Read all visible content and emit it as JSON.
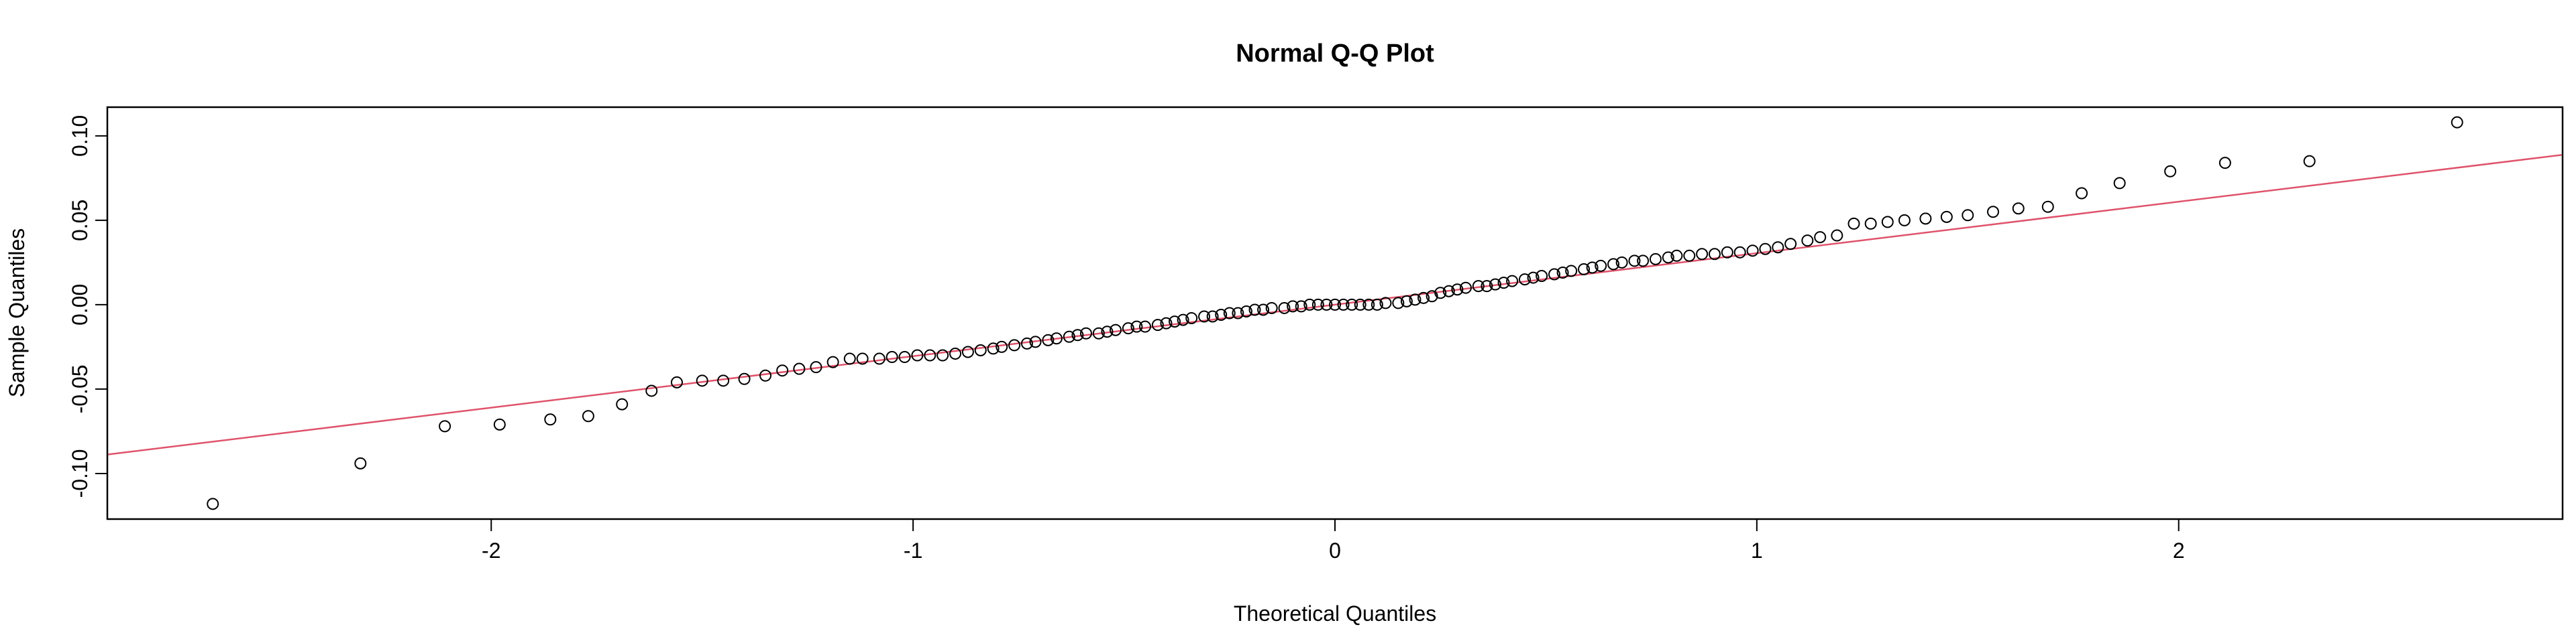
{
  "chart_data": {
    "type": "scatter",
    "title": "Normal Q-Q Plot",
    "xlabel": "Theoretical Quantiles",
    "ylabel": "Sample Quantiles",
    "xlim": [
      -2.91,
      2.91
    ],
    "ylim": [
      -0.127,
      0.117
    ],
    "x_ticks": [
      -2,
      -1,
      0,
      1,
      2
    ],
    "x_tick_labels": [
      "-2",
      "-1",
      "0",
      "1",
      "2"
    ],
    "y_ticks": [
      -0.1,
      -0.05,
      0.0,
      0.05,
      0.1
    ],
    "y_tick_labels": [
      "-0.10",
      "-0.05",
      "0.00",
      "0.05",
      "0.10"
    ],
    "grid": false,
    "line_color": "#DF536B",
    "point_color": "#000000",
    "reference_line": {
      "slope": 0.0305,
      "intercept": 0.0
    },
    "points": [
      [
        -2.66,
        -0.118
      ],
      [
        -2.31,
        -0.094
      ],
      [
        -2.11,
        -0.072
      ],
      [
        -1.98,
        -0.071
      ],
      [
        -1.86,
        -0.068
      ],
      [
        -1.77,
        -0.066
      ],
      [
        -1.69,
        -0.059
      ],
      [
        -1.62,
        -0.051
      ],
      [
        -1.56,
        -0.046
      ],
      [
        -1.5,
        -0.045
      ],
      [
        -1.45,
        -0.045
      ],
      [
        -1.4,
        -0.044
      ],
      [
        -1.35,
        -0.042
      ],
      [
        -1.31,
        -0.039
      ],
      [
        -1.27,
        -0.038
      ],
      [
        -1.23,
        -0.037
      ],
      [
        -1.19,
        -0.034
      ],
      [
        -1.15,
        -0.032
      ],
      [
        -1.12,
        -0.032
      ],
      [
        -1.08,
        -0.032
      ],
      [
        -1.05,
        -0.031
      ],
      [
        -1.02,
        -0.031
      ],
      [
        -0.99,
        -0.03
      ],
      [
        -0.96,
        -0.03
      ],
      [
        -0.93,
        -0.03
      ],
      [
        -0.9,
        -0.029
      ],
      [
        -0.87,
        -0.028
      ],
      [
        -0.84,
        -0.027
      ],
      [
        -0.81,
        -0.026
      ],
      [
        -0.79,
        -0.025
      ],
      [
        -0.76,
        -0.024
      ],
      [
        -0.73,
        -0.023
      ],
      [
        -0.71,
        -0.022
      ],
      [
        -0.68,
        -0.021
      ],
      [
        -0.66,
        -0.02
      ],
      [
        -0.63,
        -0.019
      ],
      [
        -0.61,
        -0.018
      ],
      [
        -0.59,
        -0.017
      ],
      [
        -0.56,
        -0.017
      ],
      [
        -0.54,
        -0.016
      ],
      [
        -0.52,
        -0.015
      ],
      [
        -0.49,
        -0.014
      ],
      [
        -0.47,
        -0.013
      ],
      [
        -0.45,
        -0.013
      ],
      [
        -0.42,
        -0.012
      ],
      [
        -0.4,
        -0.011
      ],
      [
        -0.38,
        -0.01
      ],
      [
        -0.36,
        -0.009
      ],
      [
        -0.34,
        -0.008
      ],
      [
        -0.31,
        -0.007
      ],
      [
        -0.29,
        -0.007
      ],
      [
        -0.27,
        -0.006
      ],
      [
        -0.25,
        -0.005
      ],
      [
        -0.23,
        -0.005
      ],
      [
        -0.21,
        -0.004
      ],
      [
        -0.19,
        -0.003
      ],
      [
        -0.17,
        -0.003
      ],
      [
        -0.15,
        -0.002
      ],
      [
        -0.12,
        -0.002
      ],
      [
        -0.1,
        -0.001
      ],
      [
        -0.08,
        -0.001
      ],
      [
        -0.06,
        0.0
      ],
      [
        -0.04,
        0.0
      ],
      [
        -0.02,
        0.0
      ],
      [
        0.0,
        0.0
      ],
      [
        0.02,
        0.0
      ],
      [
        0.04,
        0.0
      ],
      [
        0.06,
        0.0
      ],
      [
        0.08,
        0.0
      ],
      [
        0.1,
        0.0
      ],
      [
        0.12,
        0.001
      ],
      [
        0.15,
        0.001
      ],
      [
        0.17,
        0.002
      ],
      [
        0.19,
        0.003
      ],
      [
        0.21,
        0.004
      ],
      [
        0.23,
        0.005
      ],
      [
        0.25,
        0.007
      ],
      [
        0.27,
        0.008
      ],
      [
        0.29,
        0.009
      ],
      [
        0.31,
        0.01
      ],
      [
        0.34,
        0.011
      ],
      [
        0.36,
        0.011
      ],
      [
        0.38,
        0.012
      ],
      [
        0.4,
        0.013
      ],
      [
        0.42,
        0.014
      ],
      [
        0.45,
        0.015
      ],
      [
        0.47,
        0.016
      ],
      [
        0.49,
        0.017
      ],
      [
        0.52,
        0.018
      ],
      [
        0.54,
        0.019
      ],
      [
        0.56,
        0.02
      ],
      [
        0.59,
        0.021
      ],
      [
        0.61,
        0.022
      ],
      [
        0.63,
        0.023
      ],
      [
        0.66,
        0.024
      ],
      [
        0.68,
        0.025
      ],
      [
        0.71,
        0.026
      ],
      [
        0.73,
        0.026
      ],
      [
        0.76,
        0.027
      ],
      [
        0.79,
        0.028
      ],
      [
        0.81,
        0.029
      ],
      [
        0.84,
        0.029
      ],
      [
        0.87,
        0.03
      ],
      [
        0.9,
        0.03
      ],
      [
        0.93,
        0.031
      ],
      [
        0.96,
        0.031
      ],
      [
        0.99,
        0.032
      ],
      [
        1.02,
        0.033
      ],
      [
        1.05,
        0.034
      ],
      [
        1.08,
        0.036
      ],
      [
        1.12,
        0.038
      ],
      [
        1.15,
        0.04
      ],
      [
        1.19,
        0.041
      ],
      [
        1.23,
        0.048
      ],
      [
        1.27,
        0.048
      ],
      [
        1.31,
        0.049
      ],
      [
        1.35,
        0.05
      ],
      [
        1.4,
        0.051
      ],
      [
        1.45,
        0.052
      ],
      [
        1.5,
        0.053
      ],
      [
        1.56,
        0.055
      ],
      [
        1.62,
        0.057
      ],
      [
        1.69,
        0.058
      ],
      [
        1.77,
        0.066
      ],
      [
        1.86,
        0.072
      ],
      [
        1.98,
        0.079
      ],
      [
        2.11,
        0.084
      ],
      [
        2.31,
        0.085
      ],
      [
        2.66,
        0.108
      ]
    ]
  }
}
